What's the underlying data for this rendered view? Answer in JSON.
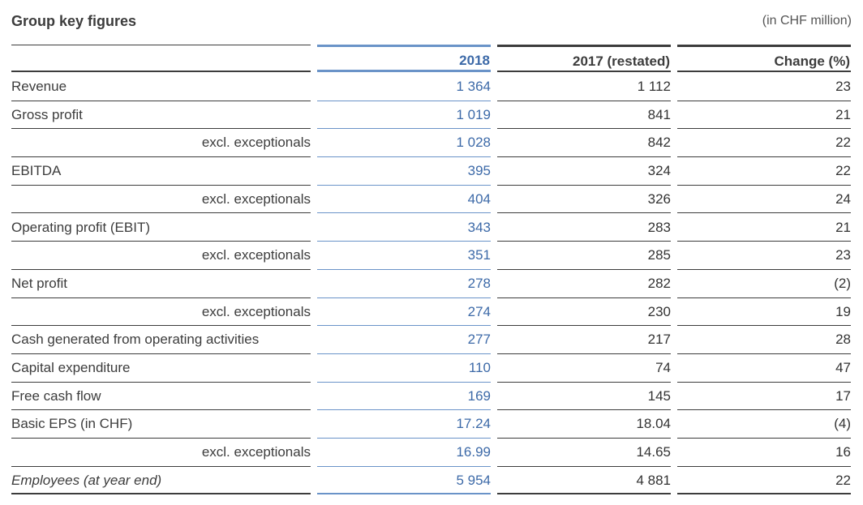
{
  "title": "Group key figures",
  "unit_note": "(in CHF million)",
  "columns": {
    "label": "",
    "y2018": "2018",
    "y2017": "2017 (restated)",
    "change": "Change (%)"
  },
  "rows": [
    {
      "label": "Revenue",
      "sub": false,
      "italic": false,
      "y2018": "1 364",
      "y2017": "1 112",
      "change": "23"
    },
    {
      "label": "Gross profit",
      "sub": false,
      "italic": false,
      "y2018": "1 019",
      "y2017": "841",
      "change": "21"
    },
    {
      "label": "excl. exceptionals",
      "sub": true,
      "italic": false,
      "y2018": "1 028",
      "y2017": "842",
      "change": "22"
    },
    {
      "label": "EBITDA",
      "sub": false,
      "italic": false,
      "y2018": "395",
      "y2017": "324",
      "change": "22"
    },
    {
      "label": "excl. exceptionals",
      "sub": true,
      "italic": false,
      "y2018": "404",
      "y2017": "326",
      "change": "24"
    },
    {
      "label": "Operating profit (EBIT)",
      "sub": false,
      "italic": false,
      "y2018": "343",
      "y2017": "283",
      "change": "21"
    },
    {
      "label": "excl. exceptionals",
      "sub": true,
      "italic": false,
      "y2018": "351",
      "y2017": "285",
      "change": "23"
    },
    {
      "label": "Net profit",
      "sub": false,
      "italic": false,
      "y2018": "278",
      "y2017": "282",
      "change": "(2)"
    },
    {
      "label": "excl. exceptionals",
      "sub": true,
      "italic": false,
      "y2018": "274",
      "y2017": "230",
      "change": "19"
    },
    {
      "label": "Cash generated from operating activities",
      "sub": false,
      "italic": false,
      "y2018": "277",
      "y2017": "217",
      "change": "28"
    },
    {
      "label": "Capital expenditure",
      "sub": false,
      "italic": false,
      "y2018": "110",
      "y2017": "74",
      "change": "47"
    },
    {
      "label": "Free cash flow",
      "sub": false,
      "italic": false,
      "y2018": "169",
      "y2017": "145",
      "change": "17"
    },
    {
      "label": "Basic EPS (in CHF)",
      "sub": false,
      "italic": false,
      "y2018": "17.24",
      "y2017": "18.04",
      "change": "(4)"
    },
    {
      "label": "excl. exceptionals",
      "sub": true,
      "italic": false,
      "y2018": "16.99",
      "y2017": "14.65",
      "change": "16"
    },
    {
      "label": "Employees (at year end)",
      "sub": false,
      "italic": true,
      "y2018": "5 954",
      "y2017": "4 881",
      "change": "22"
    }
  ],
  "colors": {
    "accent_2018": "#3d6aa8",
    "accent_2018_rule": "#6a93c8",
    "text": "#3c3c3c"
  }
}
